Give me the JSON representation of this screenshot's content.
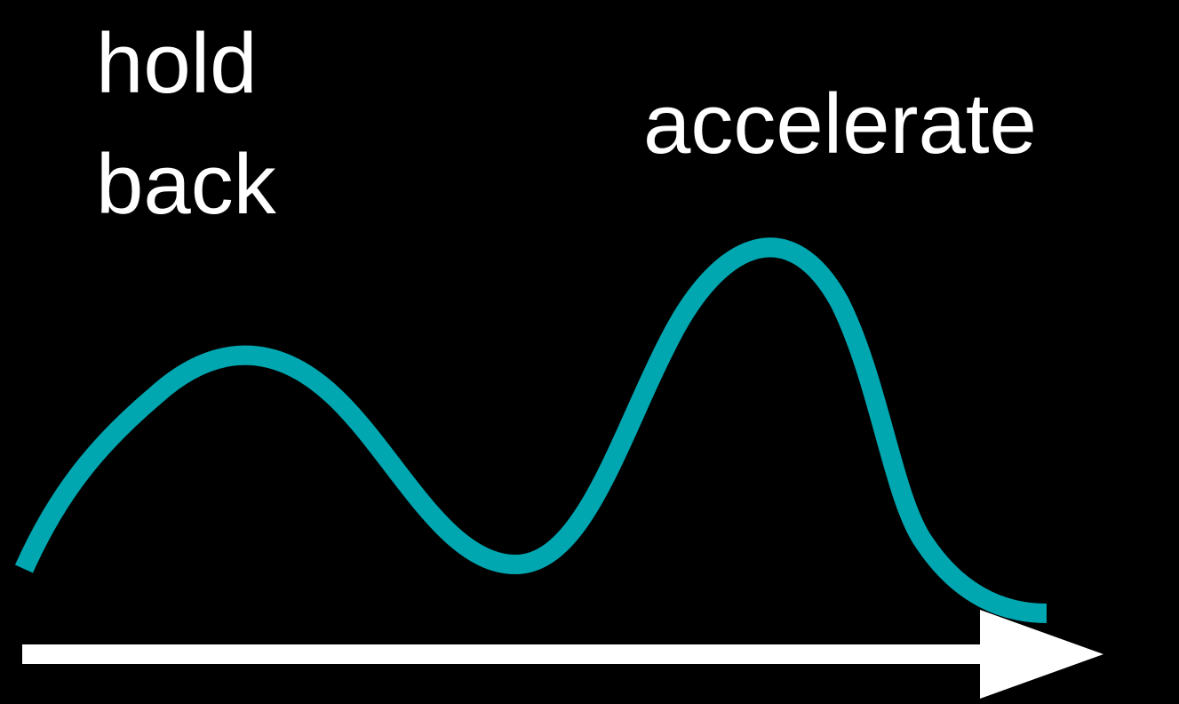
{
  "labels": {
    "hold_line1": "hold",
    "hold_line2": "back",
    "accelerate": "accelerate"
  },
  "colors": {
    "background": "#000000",
    "curve": "#00a6b0",
    "arrow": "#ffffff",
    "text": "#ffffff"
  }
}
